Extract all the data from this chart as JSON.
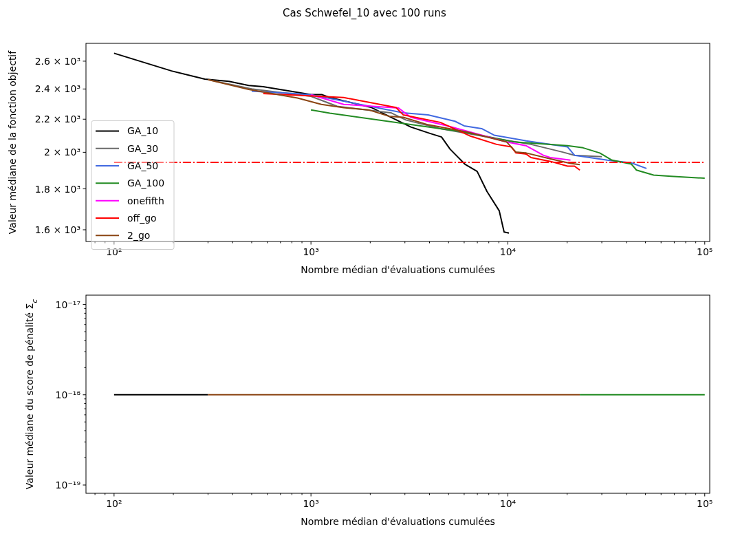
{
  "chart_data": [
    {
      "type": "line",
      "title": "Cas Schwefel_10 avec 100 runs",
      "xlabel": "Nombre médian d'évaluations cumulées",
      "ylabel": "Valeur médiane de la fonction objectif",
      "log": "xy",
      "legend": "left",
      "xlim": [
        72,
        106000
      ],
      "ylim": [
        1547,
        2737
      ],
      "xticks": [
        {
          "value": 80,
          "label": null
        },
        {
          "value": 90,
          "label": null
        },
        {
          "value": 100,
          "label": "10²"
        },
        {
          "value": 200,
          "label": null
        },
        {
          "value": 300,
          "label": null
        },
        {
          "value": 400,
          "label": null
        },
        {
          "value": 500,
          "label": null
        },
        {
          "value": 600,
          "label": null
        },
        {
          "value": 700,
          "label": null
        },
        {
          "value": 800,
          "label": null
        },
        {
          "value": 900,
          "label": null
        },
        {
          "value": 1000,
          "label": "10³"
        },
        {
          "value": 2000,
          "label": null
        },
        {
          "value": 3000,
          "label": null
        },
        {
          "value": 4000,
          "label": null
        },
        {
          "value": 5000,
          "label": null
        },
        {
          "value": 6000,
          "label": null
        },
        {
          "value": 7000,
          "label": null
        },
        {
          "value": 8000,
          "label": null
        },
        {
          "value": 9000,
          "label": null
        },
        {
          "value": 10000,
          "label": "10⁴"
        },
        {
          "value": 20000,
          "label": null
        },
        {
          "value": 30000,
          "label": null
        },
        {
          "value": 40000,
          "label": null
        },
        {
          "value": 50000,
          "label": null
        },
        {
          "value": 60000,
          "label": null
        },
        {
          "value": 70000,
          "label": null
        },
        {
          "value": 80000,
          "label": null
        },
        {
          "value": 90000,
          "label": null
        },
        {
          "value": 100000,
          "label": "10⁵"
        }
      ],
      "yticks": [
        {
          "value": 1600,
          "label": "1.6 × 10³"
        },
        {
          "value": 1800,
          "label": "1.8 × 10³"
        },
        {
          "value": 2000,
          "label": "2 × 10³"
        },
        {
          "value": 2200,
          "label": "2.2 × 10³"
        },
        {
          "value": 2400,
          "label": "2.4 × 10³"
        },
        {
          "value": 2600,
          "label": "2.6 × 10³"
        }
      ],
      "series": [
        {
          "name": "GA_10",
          "color": "#000000",
          "x": [
            100,
            196,
            289,
            383,
            483,
            572,
            855,
            1000,
            1133,
            1247,
            2032,
            2484,
            3215,
            4043,
            4603,
            5091,
            6046,
            6982,
            7832,
            9040,
            9570,
            10130
          ],
          "values": [
            2660,
            2528,
            2469,
            2453,
            2424,
            2416,
            2377,
            2362,
            2362,
            2342,
            2275,
            2219,
            2151,
            2111,
            2090,
            2018,
            1933,
            1893,
            1787,
            1690,
            1590,
            1585
          ]
        },
        {
          "name": "GA_30",
          "color": "#696969",
          "x": [
            300,
            500,
            1000,
            1359,
            2547,
            3033,
            4537,
            9290,
            13120,
            19000,
            21800,
            30000
          ],
          "values": [
            2465,
            2400,
            2350,
            2283,
            2241,
            2195,
            2141,
            2075,
            2046,
            2001,
            1983,
            1975
          ]
        },
        {
          "name": "GA_50",
          "color": "#4169e1",
          "x": [
            500,
            800,
            1000,
            2945,
            3935,
            5384,
            6000,
            7360,
            8510,
            12390,
            20100,
            21800,
            32000,
            42400,
            50600
          ],
          "values": [
            2385,
            2370,
            2360,
            2241,
            2227,
            2187,
            2158,
            2141,
            2101,
            2067,
            2031,
            1983,
            1955,
            1940,
            1909
          ]
        },
        {
          "name": "GA_100",
          "color": "#228b22",
          "x": [
            1000,
            1247,
            6046,
            10730,
            20100,
            24100,
            29300,
            33800,
            42400,
            45000,
            55000,
            67400,
            100000
          ],
          "values": [
            2260,
            2238,
            2120,
            2061,
            2038,
            2026,
            1996,
            1955,
            1933,
            1900,
            1873,
            1866,
            1856
          ]
        },
        {
          "name": "onefifth",
          "color": "#ff00ff",
          "x": [
            1000,
            1466,
            2786,
            3215,
            4940,
            9840,
            12390,
            15140,
            16400,
            20800
          ],
          "values": [
            2360,
            2296,
            2272,
            2212,
            2158,
            2061,
            2038,
            1983,
            1970,
            1955
          ]
        },
        {
          "name": "off_go",
          "color": "#ff0000",
          "x": [
            572,
            1466,
            2704,
            2945,
            4537,
            6400,
            8770,
            10420,
            11000,
            12390,
            13100,
            16500,
            20100,
            21800,
            23200
          ],
          "values": [
            2368,
            2342,
            2275,
            2227,
            2180,
            2097,
            2046,
            2031,
            1996,
            1990,
            1970,
            1948,
            1922,
            1922,
            1900
          ]
        },
        {
          "name": "2_go",
          "color": "#8b4513",
          "x": [
            300,
            483,
            855,
            1130,
            1466,
            1960,
            2484,
            2945,
            3935,
            6240,
            9840,
            11000,
            12390,
            16500,
            20800,
            23200
          ],
          "values": [
            2465,
            2397,
            2338,
            2296,
            2274,
            2260,
            2219,
            2212,
            2165,
            2120,
            2061,
            2001,
            1996,
            1962,
            1937,
            1930
          ]
        },
        {
          "color": "#ff0000",
          "line_style": "dashdot",
          "x": [
            100,
            100000
          ],
          "values": [
            1943,
            1943
          ]
        }
      ]
    },
    {
      "type": "line",
      "xlabel": "Nombre médian d'évaluations cumulées",
      "ylabel": "Valeur médiane du score de pénalité Σ$_{c}$",
      "log": "xy",
      "xlim": [
        72,
        106000
      ],
      "ylim": [
        8.1e-20,
        1.27e-17
      ],
      "xticks": [
        {
          "value": 80,
          "label": null
        },
        {
          "value": 90,
          "label": null
        },
        {
          "value": 100,
          "label": "10²"
        },
        {
          "value": 200,
          "label": null
        },
        {
          "value": 300,
          "label": null
        },
        {
          "value": 400,
          "label": null
        },
        {
          "value": 500,
          "label": null
        },
        {
          "value": 600,
          "label": null
        },
        {
          "value": 700,
          "label": null
        },
        {
          "value": 800,
          "label": null
        },
        {
          "value": 900,
          "label": null
        },
        {
          "value": 1000,
          "label": "10³"
        },
        {
          "value": 2000,
          "label": null
        },
        {
          "value": 3000,
          "label": null
        },
        {
          "value": 4000,
          "label": null
        },
        {
          "value": 5000,
          "label": null
        },
        {
          "value": 6000,
          "label": null
        },
        {
          "value": 7000,
          "label": null
        },
        {
          "value": 8000,
          "label": null
        },
        {
          "value": 9000,
          "label": null
        },
        {
          "value": 10000,
          "label": "10⁴"
        },
        {
          "value": 20000,
          "label": null
        },
        {
          "value": 30000,
          "label": null
        },
        {
          "value": 40000,
          "label": null
        },
        {
          "value": 50000,
          "label": null
        },
        {
          "value": 60000,
          "label": null
        },
        {
          "value": 70000,
          "label": null
        },
        {
          "value": 80000,
          "label": null
        },
        {
          "value": 90000,
          "label": null
        },
        {
          "value": 100000,
          "label": "10⁵"
        }
      ],
      "yticks": [
        {
          "value": 1e-19,
          "label": "10⁻¹⁹"
        },
        {
          "value": 2e-19,
          "label": null
        },
        {
          "value": 3e-19,
          "label": null
        },
        {
          "value": 4e-19,
          "label": null
        },
        {
          "value": 5e-19,
          "label": null
        },
        {
          "value": 6e-19,
          "label": null
        },
        {
          "value": 7e-19,
          "label": null
        },
        {
          "value": 8e-19,
          "label": null
        },
        {
          "value": 9e-19,
          "label": null
        },
        {
          "value": 1e-18,
          "label": "10⁻¹⁸"
        },
        {
          "value": 2e-18,
          "label": null
        },
        {
          "value": 3e-18,
          "label": null
        },
        {
          "value": 4e-18,
          "label": null
        },
        {
          "value": 5e-18,
          "label": null
        },
        {
          "value": 6e-18,
          "label": null
        },
        {
          "value": 7e-18,
          "label": null
        },
        {
          "value": 8e-18,
          "label": null
        },
        {
          "value": 9e-18,
          "label": null
        },
        {
          "value": 1e-17,
          "label": "10⁻¹⁷"
        }
      ],
      "series": [
        {
          "color": "#000000",
          "x": [
            100,
            300
          ],
          "values": [
            1e-18,
            1e-18
          ]
        },
        {
          "color": "#228b22",
          "x": [
            23200,
            100000
          ],
          "values": [
            1e-18,
            1e-18
          ]
        },
        {
          "color": "#8b4513",
          "x": [
            300,
            23200
          ],
          "values": [
            1e-18,
            1e-18
          ]
        }
      ]
    }
  ]
}
